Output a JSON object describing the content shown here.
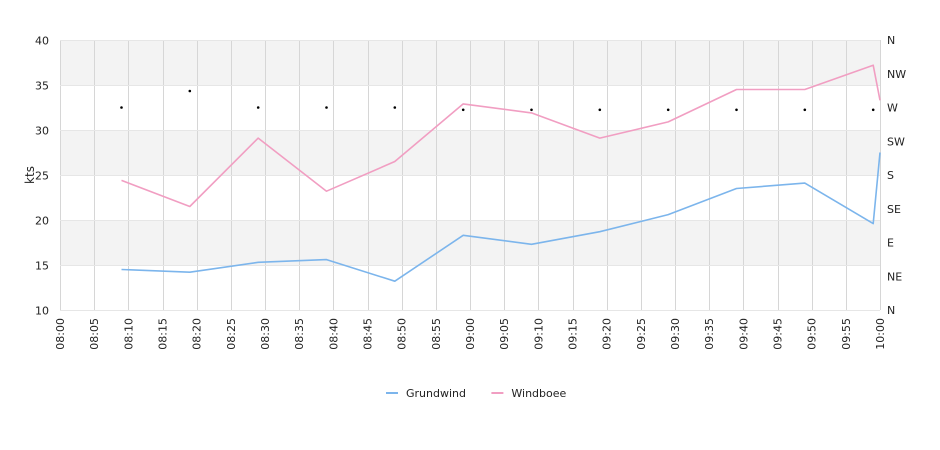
{
  "chart_data": {
    "type": "line",
    "ylabel": "kts",
    "ylim": [
      10,
      40
    ],
    "y_ticks": [
      "10",
      "15",
      "20",
      "25",
      "30",
      "35",
      "40"
    ],
    "direction_ticks": [
      "N",
      "NE",
      "E",
      "SE",
      "S",
      "SW",
      "W",
      "NW",
      "N"
    ],
    "x_ticks": [
      "08:00",
      "08:05",
      "08:10",
      "08:15",
      "08:20",
      "08:25",
      "08:30",
      "08:35",
      "08:40",
      "08:45",
      "08:50",
      "08:55",
      "09:00",
      "09:05",
      "09:10",
      "09:15",
      "09:20",
      "09:25",
      "09:30",
      "09:35",
      "09:40",
      "09:45",
      "09:50",
      "09:55",
      "10:00"
    ],
    "x": [
      "08:09",
      "08:19",
      "08:29",
      "08:39",
      "08:49",
      "08:59",
      "09:09",
      "09:19",
      "09:29",
      "09:39",
      "09:49",
      "09:59",
      "10:00"
    ],
    "series": [
      {
        "name": "Grundwind",
        "color": "#7cb5ec",
        "values": [
          14.5,
          14.2,
          15.3,
          15.6,
          13.2,
          18.3,
          17.3,
          18.7,
          20.6,
          23.5,
          24.1,
          19.6,
          27.5
        ]
      },
      {
        "name": "Windboee",
        "color": "#f19ec2",
        "values": [
          24.4,
          21.5,
          29.1,
          23.2,
          26.5,
          32.9,
          31.9,
          29.1,
          30.9,
          34.5,
          34.5,
          37.2,
          33.3
        ]
      }
    ],
    "direction_points": {
      "x": [
        "08:09",
        "08:19",
        "08:29",
        "08:39",
        "08:49",
        "08:59",
        "09:09",
        "09:19",
        "09:29",
        "09:39",
        "09:49",
        "09:59"
      ],
      "values_deg": [
        270,
        292,
        270,
        270,
        270,
        267,
        267,
        267,
        267,
        267,
        267,
        267
      ]
    },
    "grid": true,
    "legend": "bottom-center"
  }
}
